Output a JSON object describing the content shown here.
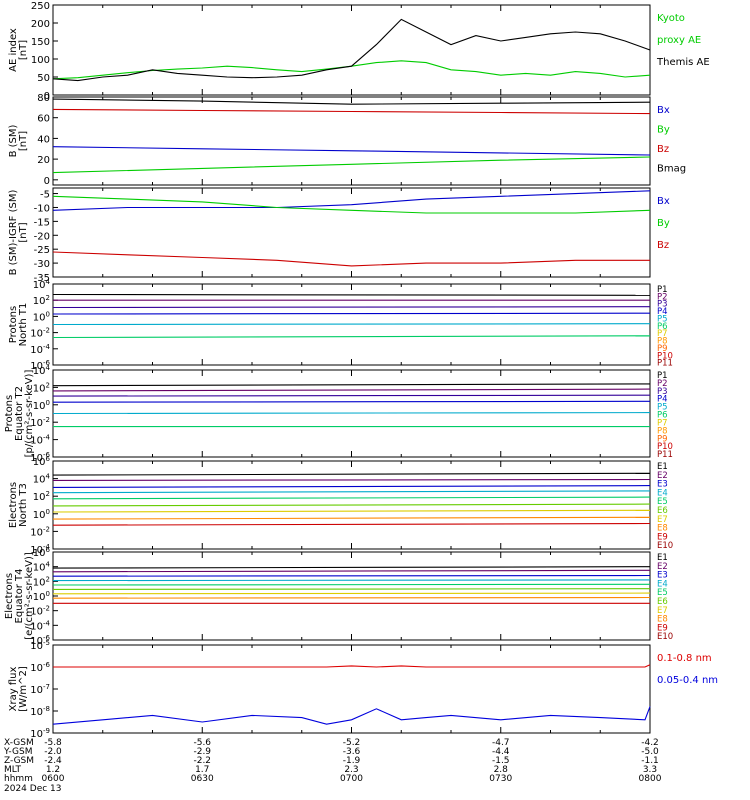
{
  "chart_data": [
    {
      "type": "line",
      "ylabel": "AE index [nT]",
      "ylim": [
        0,
        250
      ],
      "yticks": [
        0,
        50,
        100,
        150,
        200,
        250
      ],
      "x": [
        0,
        5,
        10,
        15,
        20,
        25,
        30,
        35,
        40,
        45,
        50,
        55,
        60,
        65,
        70,
        75,
        80,
        85,
        90,
        95,
        100,
        105,
        110,
        115,
        120
      ],
      "series": [
        {
          "name": "Kyoto proxy AE",
          "color": "#00cc00",
          "values": [
            45,
            48,
            55,
            62,
            68,
            72,
            75,
            80,
            76,
            70,
            65,
            72,
            80,
            90,
            95,
            90,
            70,
            65,
            55,
            60,
            55,
            65,
            60,
            50,
            55
          ]
        },
        {
          "name": "Themis AE",
          "color": "#000000",
          "values": [
            45,
            40,
            50,
            55,
            70,
            60,
            55,
            50,
            48,
            50,
            55,
            70,
            80,
            140,
            210,
            175,
            140,
            165,
            150,
            160,
            170,
            175,
            170,
            150,
            125
          ]
        }
      ]
    },
    {
      "type": "line",
      "ylabel": "B (SM) [nT]",
      "ylim": [
        -5,
        80
      ],
      "yticks": [
        0,
        20,
        40,
        60,
        80
      ],
      "x": [
        0,
        30,
        60,
        90,
        120
      ],
      "series": [
        {
          "name": "Bx",
          "color": "#0000cc",
          "values": [
            32,
            30,
            28,
            26,
            24
          ]
        },
        {
          "name": "By",
          "color": "#00cc00",
          "values": [
            7,
            11,
            15,
            19,
            22
          ]
        },
        {
          "name": "Bz",
          "color": "#cc0000",
          "values": [
            68,
            67,
            66,
            65,
            64
          ]
        },
        {
          "name": "Bmag",
          "color": "#000000",
          "values": [
            78,
            76,
            73,
            74,
            75
          ]
        }
      ]
    },
    {
      "type": "line",
      "ylabel": "B (SM)-IGRF (SM) [nT]",
      "ylim": [
        -35,
        -3
      ],
      "yticks": [
        -35,
        -30,
        -25,
        -20,
        -15,
        -10,
        -5
      ],
      "x": [
        0,
        15,
        30,
        45,
        60,
        75,
        90,
        105,
        120
      ],
      "series": [
        {
          "name": "Bx",
          "color": "#0000cc",
          "values": [
            -11,
            -10,
            -10,
            -10,
            -9,
            -7,
            -6,
            -5,
            -4
          ]
        },
        {
          "name": "By",
          "color": "#00cc00",
          "values": [
            -6,
            -7,
            -8,
            -10,
            -11,
            -12,
            -12,
            -12,
            -11
          ]
        },
        {
          "name": "Bz",
          "color": "#cc0000",
          "values": [
            -26,
            -27,
            -28,
            -29,
            -31,
            -30,
            -30,
            -29,
            -29
          ]
        }
      ]
    },
    {
      "type": "line",
      "ylabel": "Protons North T1",
      "yscale": "log",
      "ylim": [
        -6,
        4
      ],
      "ytick_labels": [
        "10^-6",
        "10^-4",
        "10^-2",
        "10^0",
        "10^2",
        "10^4"
      ],
      "x": [
        0,
        120
      ],
      "series": [
        {
          "name": "P1",
          "color": "#000000",
          "log_values": [
            2.7,
            2.6
          ]
        },
        {
          "name": "P2",
          "color": "#660066",
          "log_values": [
            2.0,
            2.0
          ]
        },
        {
          "name": "P3",
          "color": "#330099",
          "log_values": [
            1.1,
            1.2
          ]
        },
        {
          "name": "P4",
          "color": "#0000cc",
          "log_values": [
            0.3,
            0.4
          ]
        },
        {
          "name": "P5",
          "color": "#00aacc",
          "log_values": [
            -1.0,
            -0.9
          ]
        },
        {
          "name": "P6",
          "color": "#00cc66",
          "log_values": [
            -2.6,
            -2.4
          ]
        }
      ]
    },
    {
      "type": "line",
      "ylabel": "Protons Equator T2 [p/(cm^2-s-sr-keV)]",
      "yscale": "log",
      "ylim": [
        -6,
        4
      ],
      "ytick_labels": [
        "10^-6",
        "10^-4",
        "10^-2",
        "10^0",
        "10^2",
        "10^4"
      ],
      "x": [
        0,
        120
      ],
      "series": [
        {
          "name": "P1",
          "color": "#000000",
          "log_values": [
            2.2,
            2.4
          ]
        },
        {
          "name": "P2",
          "color": "#660066",
          "log_values": [
            1.6,
            1.8
          ]
        },
        {
          "name": "P3",
          "color": "#330099",
          "log_values": [
            1.0,
            1.1
          ]
        },
        {
          "name": "P4",
          "color": "#0000cc",
          "log_values": [
            0.3,
            0.4
          ]
        },
        {
          "name": "P5",
          "color": "#00aacc",
          "log_values": [
            -1.0,
            -0.9
          ]
        },
        {
          "name": "P6",
          "color": "#00cc66",
          "log_values": [
            -2.5,
            -2.5
          ]
        }
      ]
    },
    {
      "type": "line",
      "ylabel": "Electrons North T3",
      "yscale": "log",
      "ylim": [
        -4,
        6
      ],
      "ytick_labels": [
        "10^-4",
        "10^-2",
        "10^0",
        "10^2",
        "10^4",
        "10^6"
      ],
      "x": [
        0,
        120
      ],
      "series": [
        {
          "name": "E1",
          "color": "#000000",
          "log_values": [
            4.4,
            4.6
          ]
        },
        {
          "name": "E2",
          "color": "#660066",
          "log_values": [
            3.8,
            3.9
          ]
        },
        {
          "name": "E3",
          "color": "#0000cc",
          "log_values": [
            3.0,
            3.2
          ]
        },
        {
          "name": "E4",
          "color": "#00aacc",
          "log_values": [
            2.4,
            2.6
          ]
        },
        {
          "name": "E5",
          "color": "#00cc66",
          "log_values": [
            1.7,
            1.9
          ]
        },
        {
          "name": "E6",
          "color": "#66cc00",
          "log_values": [
            0.9,
            1.1
          ]
        },
        {
          "name": "E7",
          "color": "#ddcc00",
          "log_values": [
            0.2,
            0.4
          ]
        },
        {
          "name": "E8",
          "color": "#ff8800",
          "log_values": [
            -0.6,
            -0.4
          ]
        },
        {
          "name": "E9",
          "color": "#cc0000",
          "log_values": [
            -1.3,
            -1.1
          ]
        }
      ]
    },
    {
      "type": "line",
      "ylabel": "Electrons Equator T4 [e/(cm^2-s-sr-keV)]",
      "yscale": "log",
      "ylim": [
        -6,
        6
      ],
      "ytick_labels": [
        "10^-6",
        "10^-4",
        "10^-2",
        "10^0",
        "10^2",
        "10^4",
        "10^6"
      ],
      "x": [
        0,
        120
      ],
      "series": [
        {
          "name": "E1",
          "color": "#000000",
          "log_values": [
            3.8,
            4.0
          ]
        },
        {
          "name": "E2",
          "color": "#660066",
          "log_values": [
            3.3,
            3.5
          ]
        },
        {
          "name": "E3",
          "color": "#0000cc",
          "log_values": [
            2.7,
            2.8
          ]
        },
        {
          "name": "E4",
          "color": "#00aacc",
          "log_values": [
            2.1,
            2.2
          ]
        },
        {
          "name": "E5",
          "color": "#00cc66",
          "log_values": [
            1.5,
            1.6
          ]
        },
        {
          "name": "E6",
          "color": "#66cc00",
          "log_values": [
            0.9,
            1.0
          ]
        },
        {
          "name": "E7",
          "color": "#ddcc00",
          "log_values": [
            0.3,
            0.4
          ]
        },
        {
          "name": "E8",
          "color": "#ff8800",
          "log_values": [
            -0.3,
            -0.2
          ]
        },
        {
          "name": "E9",
          "color": "#cc0000",
          "log_values": [
            -1.0,
            -1.0
          ]
        }
      ]
    },
    {
      "type": "line",
      "ylabel": "Xray flux [W/m^2]",
      "yscale": "log",
      "ylim": [
        -9,
        -5
      ],
      "ytick_labels": [
        "10^-9",
        "10^-8",
        "10^-7",
        "10^-6",
        "10^-5"
      ],
      "x": [
        0,
        10,
        20,
        30,
        40,
        50,
        55,
        60,
        65,
        70,
        75,
        80,
        90,
        100,
        110,
        119,
        120
      ],
      "series": [
        {
          "name": "0.1-0.8 nm",
          "color": "#dd0000",
          "log_values": [
            -6.0,
            -6.0,
            -6.0,
            -6.0,
            -6.0,
            -6.0,
            -6.0,
            -5.95,
            -6.0,
            -5.95,
            -6.0,
            -6.0,
            -6.0,
            -6.0,
            -6.0,
            -6.0,
            -5.9
          ]
        },
        {
          "name": "0.05-0.4 nm",
          "color": "#0000dd",
          "log_values": [
            -8.6,
            -8.4,
            -8.2,
            -8.5,
            -8.2,
            -8.3,
            -8.6,
            -8.4,
            -7.9,
            -8.4,
            -8.3,
            -8.2,
            -8.4,
            -8.2,
            -8.3,
            -8.4,
            -7.8
          ]
        }
      ]
    }
  ],
  "orbit": {
    "rows": [
      "X-GSM",
      "Y-GSM",
      "Z-GSM",
      "MLT",
      "hhmm"
    ],
    "columns": [
      {
        "X-GSM": "-5.8",
        "Y-GSM": "-2.0",
        "Z-GSM": "-2.4",
        "MLT": "1.2",
        "hhmm": "0600"
      },
      {
        "X-GSM": "-5.6",
        "Y-GSM": "-2.9",
        "Z-GSM": "-2.2",
        "MLT": "1.7",
        "hhmm": "0630"
      },
      {
        "X-GSM": "-5.2",
        "Y-GSM": "-3.6",
        "Z-GSM": "-1.9",
        "MLT": "2.3",
        "hhmm": "0700"
      },
      {
        "X-GSM": "-4.7",
        "Y-GSM": "-4.4",
        "Z-GSM": "-1.5",
        "MLT": "2.8",
        "hhmm": "0730"
      },
      {
        "X-GSM": "-4.2",
        "Y-GSM": "-5.0",
        "Z-GSM": "-1.1",
        "MLT": "3.3",
        "hhmm": "0800"
      }
    ],
    "date": "2024 Dec 13"
  },
  "panel_labels": [
    {
      "lines": [
        "AE index",
        "[nT]"
      ],
      "right": [
        {
          "t": "Kyoto",
          "c": "#00cc00"
        },
        {
          "t": "proxy AE",
          "c": "#00cc00"
        },
        {
          "t": "Themis AE",
          "c": "#000000"
        }
      ]
    },
    {
      "lines": [
        "B (SM)",
        "[nT]"
      ],
      "right": [
        {
          "t": "Bx",
          "c": "#0000cc"
        },
        {
          "t": "By",
          "c": "#00cc00"
        },
        {
          "t": "Bz",
          "c": "#cc0000"
        },
        {
          "t": "Bmag",
          "c": "#000000"
        }
      ]
    },
    {
      "lines": [
        "B (SM)-IGRF (SM)",
        "[nT]"
      ],
      "right": [
        {
          "t": "Bx",
          "c": "#0000cc"
        },
        {
          "t": "By",
          "c": "#00cc00"
        },
        {
          "t": "Bz",
          "c": "#cc0000"
        }
      ]
    },
    {
      "lines": [
        "Protons",
        "North T1"
      ],
      "right": [
        {
          "t": "P1",
          "c": "#000000"
        },
        {
          "t": "P2",
          "c": "#660066"
        },
        {
          "t": "P3",
          "c": "#330099"
        },
        {
          "t": "P4",
          "c": "#0000cc"
        },
        {
          "t": "P5",
          "c": "#00aacc"
        },
        {
          "t": "P6",
          "c": "#00cc66"
        },
        {
          "t": "P7",
          "c": "#ddcc00"
        },
        {
          "t": "P8",
          "c": "#ff9900"
        },
        {
          "t": "P9",
          "c": "#ff6600"
        },
        {
          "t": "P10",
          "c": "#cc0000"
        },
        {
          "t": "P11",
          "c": "#990000"
        }
      ]
    },
    {
      "lines": [
        "Protons",
        "Equator T2",
        "[p/(cm²-s-sr-keV)]"
      ],
      "right": [
        {
          "t": "P1",
          "c": "#000000"
        },
        {
          "t": "P2",
          "c": "#660066"
        },
        {
          "t": "P3",
          "c": "#330099"
        },
        {
          "t": "P4",
          "c": "#0000cc"
        },
        {
          "t": "P5",
          "c": "#00aacc"
        },
        {
          "t": "P6",
          "c": "#00cc66"
        },
        {
          "t": "P7",
          "c": "#ddcc00"
        },
        {
          "t": "P8",
          "c": "#ff9900"
        },
        {
          "t": "P9",
          "c": "#ff6600"
        },
        {
          "t": "P10",
          "c": "#cc0000"
        },
        {
          "t": "P11",
          "c": "#990000"
        }
      ]
    },
    {
      "lines": [
        "Electrons",
        "North T3"
      ],
      "right": [
        {
          "t": "E1",
          "c": "#000000"
        },
        {
          "t": "E2",
          "c": "#660066"
        },
        {
          "t": "E3",
          "c": "#0000cc"
        },
        {
          "t": "E4",
          "c": "#00aacc"
        },
        {
          "t": "E5",
          "c": "#00cc66"
        },
        {
          "t": "E6",
          "c": "#66cc00"
        },
        {
          "t": "E7",
          "c": "#ddcc00"
        },
        {
          "t": "E8",
          "c": "#ff8800"
        },
        {
          "t": "E9",
          "c": "#cc0000"
        },
        {
          "t": "E10",
          "c": "#990000"
        }
      ]
    },
    {
      "lines": [
        "Electrons",
        "Equator T4",
        "[e/(cm²-s-sr-keV)]"
      ],
      "right": [
        {
          "t": "E1",
          "c": "#000000"
        },
        {
          "t": "E2",
          "c": "#660066"
        },
        {
          "t": "E3",
          "c": "#0000cc"
        },
        {
          "t": "E4",
          "c": "#00aacc"
        },
        {
          "t": "E5",
          "c": "#00cc66"
        },
        {
          "t": "E6",
          "c": "#66cc00"
        },
        {
          "t": "E7",
          "c": "#ddcc00"
        },
        {
          "t": "E8",
          "c": "#ff8800"
        },
        {
          "t": "E9",
          "c": "#cc0000"
        },
        {
          "t": "E10",
          "c": "#990000"
        }
      ]
    },
    {
      "lines": [
        "Xray flux",
        "[W/m^2]"
      ],
      "right": [
        {
          "t": "0.1-0.8 nm",
          "c": "#dd0000"
        },
        {
          "t": "0.05-0.4 nm",
          "c": "#0000dd"
        }
      ]
    }
  ]
}
